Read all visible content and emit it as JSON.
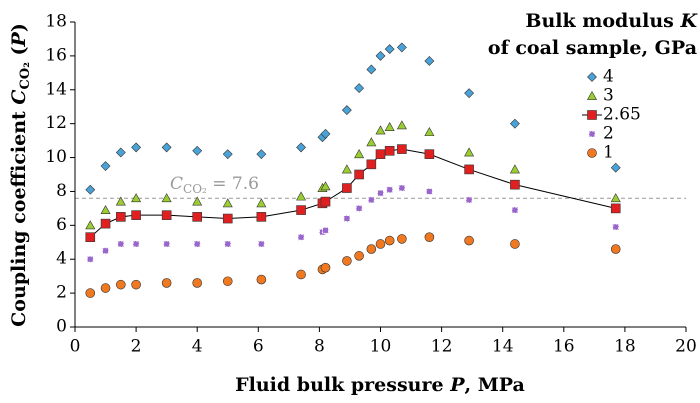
{
  "chart_data": {
    "type": "scatter",
    "y_label": {
      "text": "Coupling coefficient ",
      "symbol": "C",
      "subscript": "CO₂",
      "argument_open": " (",
      "argument": "P",
      "argument_close": ")"
    },
    "x_label": {
      "text": "Fluid bulk pressure ",
      "symbol": "P",
      "unit": ", MPa"
    },
    "legend_title": {
      "line1_text": "Bulk modulus ",
      "line1_symbol": "K",
      "line2": "of coal sample, GPa"
    },
    "legend_position": "right",
    "xlim": [
      0,
      20
    ],
    "xticks": [
      0,
      2,
      4,
      6,
      8,
      10,
      12,
      14,
      16,
      18,
      20
    ],
    "ylim": [
      0,
      18
    ],
    "yticks": [
      0,
      2,
      4,
      6,
      8,
      10,
      12,
      14,
      16,
      18
    ],
    "reference_line": {
      "value": 7.6,
      "symbol": "C",
      "subscript": "CO₂",
      "label": " = 7.6",
      "color": "#999999"
    },
    "x": [
      0.5,
      1,
      1.5,
      2,
      3,
      4,
      5,
      6.1,
      7.4,
      8.1,
      8.2,
      8.9,
      9.3,
      9.7,
      10,
      10.3,
      10.7,
      11.6,
      12.9,
      14.4,
      17.7
    ],
    "series": [
      {
        "name": "4",
        "color": "#4aa3d8",
        "marker": "diamond",
        "line": false,
        "values": [
          8.1,
          9.5,
          10.3,
          10.6,
          10.6,
          10.4,
          10.2,
          10.2,
          10.6,
          11.2,
          11.4,
          12.8,
          14.1,
          15.2,
          16.0,
          16.4,
          16.5,
          15.7,
          13.8,
          12.0,
          9.4
        ]
      },
      {
        "name": "3",
        "color": "#9acd32",
        "marker": "triangle",
        "line": false,
        "values": [
          6.0,
          6.9,
          7.4,
          7.6,
          7.6,
          7.4,
          7.3,
          7.3,
          7.7,
          8.2,
          8.3,
          9.3,
          10.2,
          10.9,
          11.6,
          11.8,
          11.9,
          11.5,
          10.3,
          9.3,
          7.6
        ]
      },
      {
        "name": "2.65",
        "color": "#e02020",
        "marker": "square",
        "line": true,
        "values": [
          5.3,
          6.1,
          6.5,
          6.6,
          6.6,
          6.5,
          6.4,
          6.5,
          6.9,
          7.3,
          7.4,
          8.2,
          9.0,
          9.6,
          10.2,
          10.4,
          10.5,
          10.2,
          9.3,
          8.4,
          7.0
        ]
      },
      {
        "name": "2",
        "color": "#9966cc",
        "marker": "asterisk",
        "line": false,
        "values": [
          4.0,
          4.5,
          4.9,
          4.9,
          4.9,
          4.9,
          4.9,
          4.9,
          5.3,
          5.6,
          5.7,
          6.4,
          7.0,
          7.5,
          7.9,
          8.1,
          8.2,
          8.0,
          7.5,
          6.9,
          5.9
        ]
      },
      {
        "name": "1",
        "color": "#f07820",
        "marker": "circle",
        "line": false,
        "values": [
          2.0,
          2.3,
          2.5,
          2.5,
          2.6,
          2.6,
          2.7,
          2.8,
          3.1,
          3.4,
          3.5,
          3.9,
          4.2,
          4.6,
          4.9,
          5.1,
          5.2,
          5.3,
          5.1,
          4.9,
          4.6
        ]
      }
    ]
  }
}
